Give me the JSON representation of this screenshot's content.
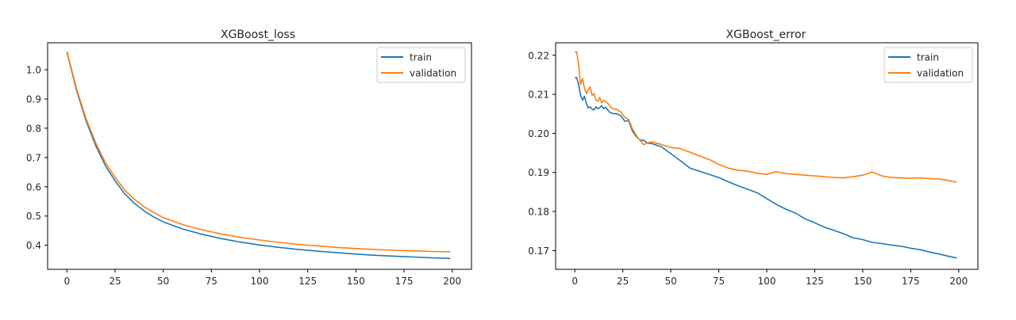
{
  "chart_data": [
    {
      "type": "line",
      "title": "XGBoost_loss",
      "xlabel": "",
      "ylabel": "",
      "xlim": [
        -10,
        210
      ],
      "ylim": [
        0.318,
        1.092
      ],
      "xticks": [
        0,
        25,
        50,
        75,
        100,
        125,
        150,
        175,
        200
      ],
      "xtick_labels": [
        "0",
        "25",
        "50",
        "75",
        "100",
        "125",
        "150",
        "175",
        "200"
      ],
      "yticks": [
        0.4,
        0.5,
        0.6,
        0.7,
        0.8,
        0.9,
        1.0
      ],
      "ytick_labels": [
        "0.4",
        "0.5",
        "0.6",
        "0.7",
        "0.8",
        "0.9",
        "1.0"
      ],
      "grid": false,
      "legend_position": "top-right",
      "series": [
        {
          "name": "train",
          "color": "#1f77b4",
          "x": [
            0,
            5,
            10,
            15,
            20,
            25,
            30,
            35,
            40,
            45,
            50,
            60,
            70,
            80,
            90,
            100,
            110,
            120,
            130,
            140,
            150,
            160,
            170,
            180,
            190,
            199
          ],
          "values": [
            1.06,
            0.93,
            0.825,
            0.74,
            0.672,
            0.62,
            0.576,
            0.544,
            0.518,
            0.497,
            0.48,
            0.456,
            0.438,
            0.423,
            0.411,
            0.401,
            0.393,
            0.386,
            0.38,
            0.375,
            0.37,
            0.366,
            0.363,
            0.36,
            0.357,
            0.355
          ]
        },
        {
          "name": "validation",
          "color": "#ff7f0e",
          "x": [
            0,
            5,
            10,
            15,
            20,
            25,
            30,
            35,
            40,
            45,
            50,
            60,
            70,
            80,
            90,
            100,
            110,
            120,
            130,
            140,
            150,
            160,
            170,
            180,
            190,
            199
          ],
          "values": [
            1.063,
            0.935,
            0.832,
            0.749,
            0.683,
            0.632,
            0.589,
            0.557,
            0.532,
            0.512,
            0.495,
            0.471,
            0.453,
            0.439,
            0.427,
            0.418,
            0.41,
            0.403,
            0.398,
            0.393,
            0.389,
            0.386,
            0.383,
            0.381,
            0.379,
            0.378
          ]
        }
      ]
    },
    {
      "type": "line",
      "title": "XGBoost_error",
      "xlabel": "",
      "ylabel": "",
      "xlim": [
        -10,
        210
      ],
      "ylim": [
        0.1652,
        0.2232
      ],
      "xticks": [
        0,
        25,
        50,
        75,
        100,
        125,
        150,
        175,
        200
      ],
      "xtick_labels": [
        "0",
        "25",
        "50",
        "75",
        "100",
        "125",
        "150",
        "175",
        "200"
      ],
      "yticks": [
        0.17,
        0.18,
        0.19,
        0.2,
        0.21,
        0.22
      ],
      "ytick_labels": [
        "0.17",
        "0.18",
        "0.19",
        "0.20",
        "0.21",
        "0.22"
      ],
      "grid": false,
      "legend_position": "top-right",
      "series": [
        {
          "name": "train",
          "color": "#1f77b4",
          "x": [
            0,
            1,
            2,
            3,
            4,
            5,
            6,
            7,
            8,
            9,
            10,
            11,
            12,
            13,
            14,
            15,
            16,
            17,
            18,
            19,
            20,
            22,
            24,
            26,
            28,
            30,
            32,
            34,
            36,
            38,
            40,
            45,
            50,
            55,
            60,
            65,
            70,
            75,
            80,
            85,
            90,
            95,
            100,
            105,
            110,
            115,
            120,
            125,
            130,
            135,
            140,
            145,
            150,
            155,
            160,
            165,
            170,
            175,
            180,
            185,
            190,
            195,
            199
          ],
          "values": [
            0.2142,
            0.2143,
            0.2125,
            0.2098,
            0.2085,
            0.2095,
            0.2077,
            0.2065,
            0.2068,
            0.2062,
            0.206,
            0.2068,
            0.2063,
            0.2066,
            0.2071,
            0.2063,
            0.2067,
            0.2061,
            0.2055,
            0.2052,
            0.2051,
            0.205,
            0.2045,
            0.2031,
            0.2033,
            0.2006,
            0.1992,
            0.1983,
            0.1982,
            0.1975,
            0.1974,
            0.1966,
            0.1948,
            0.193,
            0.1911,
            0.1903,
            0.1895,
            0.1887,
            0.1876,
            0.1866,
            0.1857,
            0.1848,
            0.1833,
            0.1818,
            0.1806,
            0.1796,
            0.1781,
            0.1771,
            0.176,
            0.1752,
            0.1743,
            0.1733,
            0.1728,
            0.1721,
            0.1718,
            0.1714,
            0.1711,
            0.1706,
            0.1702,
            0.1696,
            0.1691,
            0.1685,
            0.1681
          ]
        },
        {
          "name": "validation",
          "color": "#ff7f0e",
          "x": [
            0,
            1,
            2,
            3,
            4,
            5,
            6,
            7,
            8,
            9,
            10,
            11,
            12,
            13,
            14,
            15,
            16,
            17,
            18,
            19,
            20,
            22,
            24,
            26,
            28,
            30,
            32,
            34,
            36,
            38,
            40,
            45,
            50,
            55,
            60,
            65,
            70,
            75,
            80,
            85,
            90,
            95,
            100,
            105,
            110,
            115,
            120,
            125,
            130,
            135,
            140,
            145,
            150,
            155,
            160,
            165,
            170,
            175,
            180,
            185,
            190,
            195,
            199
          ],
          "values": [
            0.2207,
            0.2209,
            0.2175,
            0.2125,
            0.2141,
            0.2115,
            0.2102,
            0.2112,
            0.2119,
            0.2097,
            0.2102,
            0.2085,
            0.2082,
            0.2092,
            0.2078,
            0.2085,
            0.2081,
            0.2078,
            0.2072,
            0.2066,
            0.2063,
            0.2061,
            0.2055,
            0.2041,
            0.2036,
            0.2012,
            0.1995,
            0.1982,
            0.1971,
            0.1976,
            0.1978,
            0.1972,
            0.1964,
            0.1961,
            0.1952,
            0.1942,
            0.1933,
            0.1921,
            0.1911,
            0.1906,
            0.1903,
            0.1898,
            0.1895,
            0.1902,
            0.1897,
            0.1895,
            0.1893,
            0.1891,
            0.1889,
            0.1887,
            0.1886,
            0.1889,
            0.1893,
            0.1901,
            0.1891,
            0.1887,
            0.1886,
            0.1885,
            0.1886,
            0.1884,
            0.1883,
            0.1879,
            0.1875
          ]
        }
      ]
    }
  ]
}
